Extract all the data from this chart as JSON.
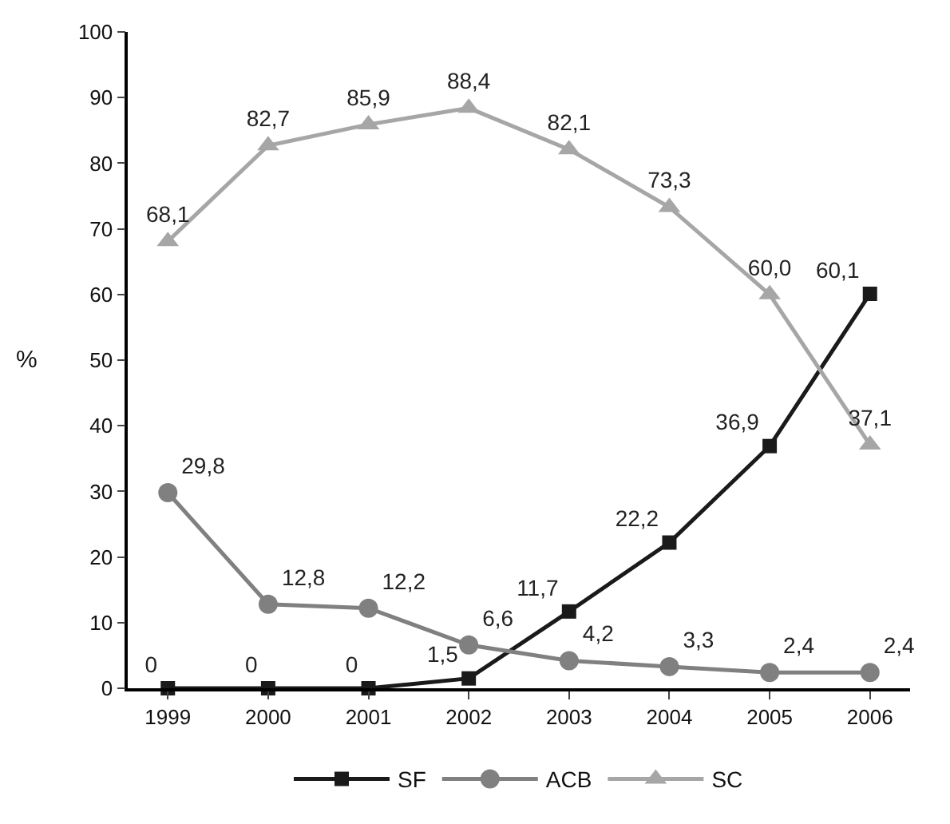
{
  "chart_data": {
    "type": "line",
    "ylabel": "%",
    "categories": [
      "1999",
      "2000",
      "2001",
      "2002",
      "2003",
      "2004",
      "2005",
      "2006"
    ],
    "series": [
      {
        "name": "SF",
        "color": "#1a1a1a",
        "marker": "square",
        "values": [
          0,
          0,
          0,
          1.5,
          11.7,
          22.2,
          36.9,
          60.1
        ],
        "value_labels": [
          "0",
          "0",
          "0",
          "1,5",
          "11,7",
          "22,2",
          "36,9",
          "60,1"
        ]
      },
      {
        "name": "ACB",
        "color": "#808080",
        "marker": "circle",
        "values": [
          29.8,
          12.8,
          12.2,
          6.6,
          4.2,
          3.3,
          2.4,
          2.4
        ],
        "value_labels": [
          "29,8",
          "12,8",
          "12,2",
          "6,6",
          "4,2",
          "3,3",
          "2,4",
          "2,4"
        ]
      },
      {
        "name": "SC",
        "color": "#a6a6a6",
        "marker": "triangle",
        "values": [
          68.1,
          82.7,
          85.9,
          88.4,
          82.1,
          73.3,
          60.0,
          37.1
        ],
        "value_labels": [
          "68,1",
          "82,7",
          "85,9",
          "88,4",
          "82,1",
          "73,3",
          "60,0",
          "37,1"
        ]
      }
    ],
    "ylim": [
      0,
      100
    ],
    "yticks": [
      0,
      10,
      20,
      30,
      40,
      50,
      60,
      70,
      80,
      90,
      100
    ],
    "legend": "bottom",
    "line_style": "solid"
  }
}
